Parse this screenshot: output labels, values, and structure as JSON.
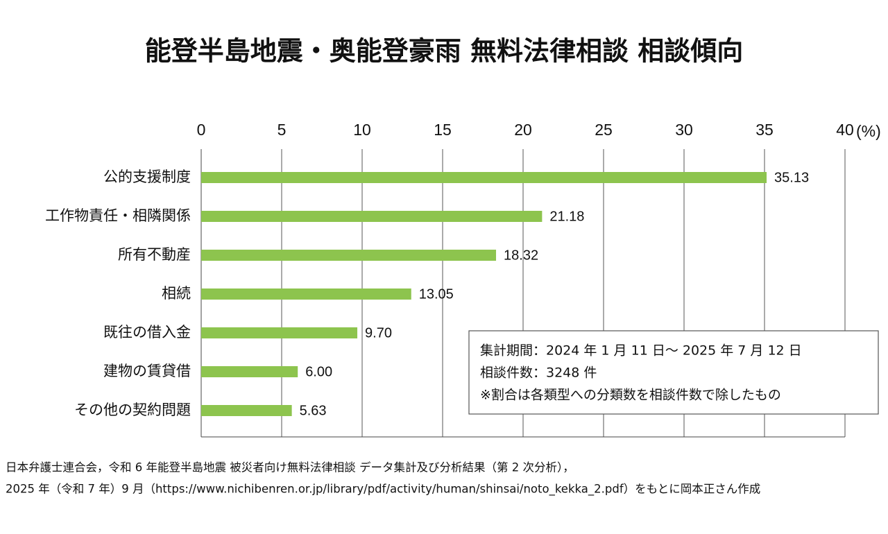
{
  "chart_data": {
    "type": "bar",
    "orientation": "horizontal",
    "title": "能登半島地震・奥能登豪雨 無料法律相談 相談傾向",
    "categories": [
      "公的支援制度",
      "工作物責任・相隣関係",
      "所有不動産",
      "相続",
      "既往の借入金",
      "建物の賃貸借",
      "その他の契約問題"
    ],
    "values": [
      35.13,
      21.18,
      18.32,
      13.05,
      9.7,
      6.0,
      5.63
    ],
    "value_labels": [
      "35.13",
      "21.18",
      "18.32",
      "13.05",
      "9.70",
      "6.00",
      "5.63"
    ],
    "color": "#8dc44e",
    "xlim": [
      0,
      40
    ],
    "xticks": [
      0,
      5,
      10,
      15,
      20,
      25,
      30,
      35,
      40
    ],
    "x_unit": "(%)",
    "grid": true,
    "annotation": [
      "集計期間：2024 年 1 月 11 日～ 2025 年 7 月 12 日",
      "相談件数：3248 件",
      "※割合は各類型への分類数を相談件数で除したもの"
    ],
    "source": [
      "日本弁護士連合会，令和 6 年能登半島地震 被災者向け無料法律相談 データ集計及び分析結果（第 2 次分析），",
      "2025 年（令和 7 年）9 月（https://www.nichibenren.or.jp/library/pdf/activity/human/shinsai/noto_kekka_2.pdf）をもとに岡本正さん作成"
    ]
  }
}
